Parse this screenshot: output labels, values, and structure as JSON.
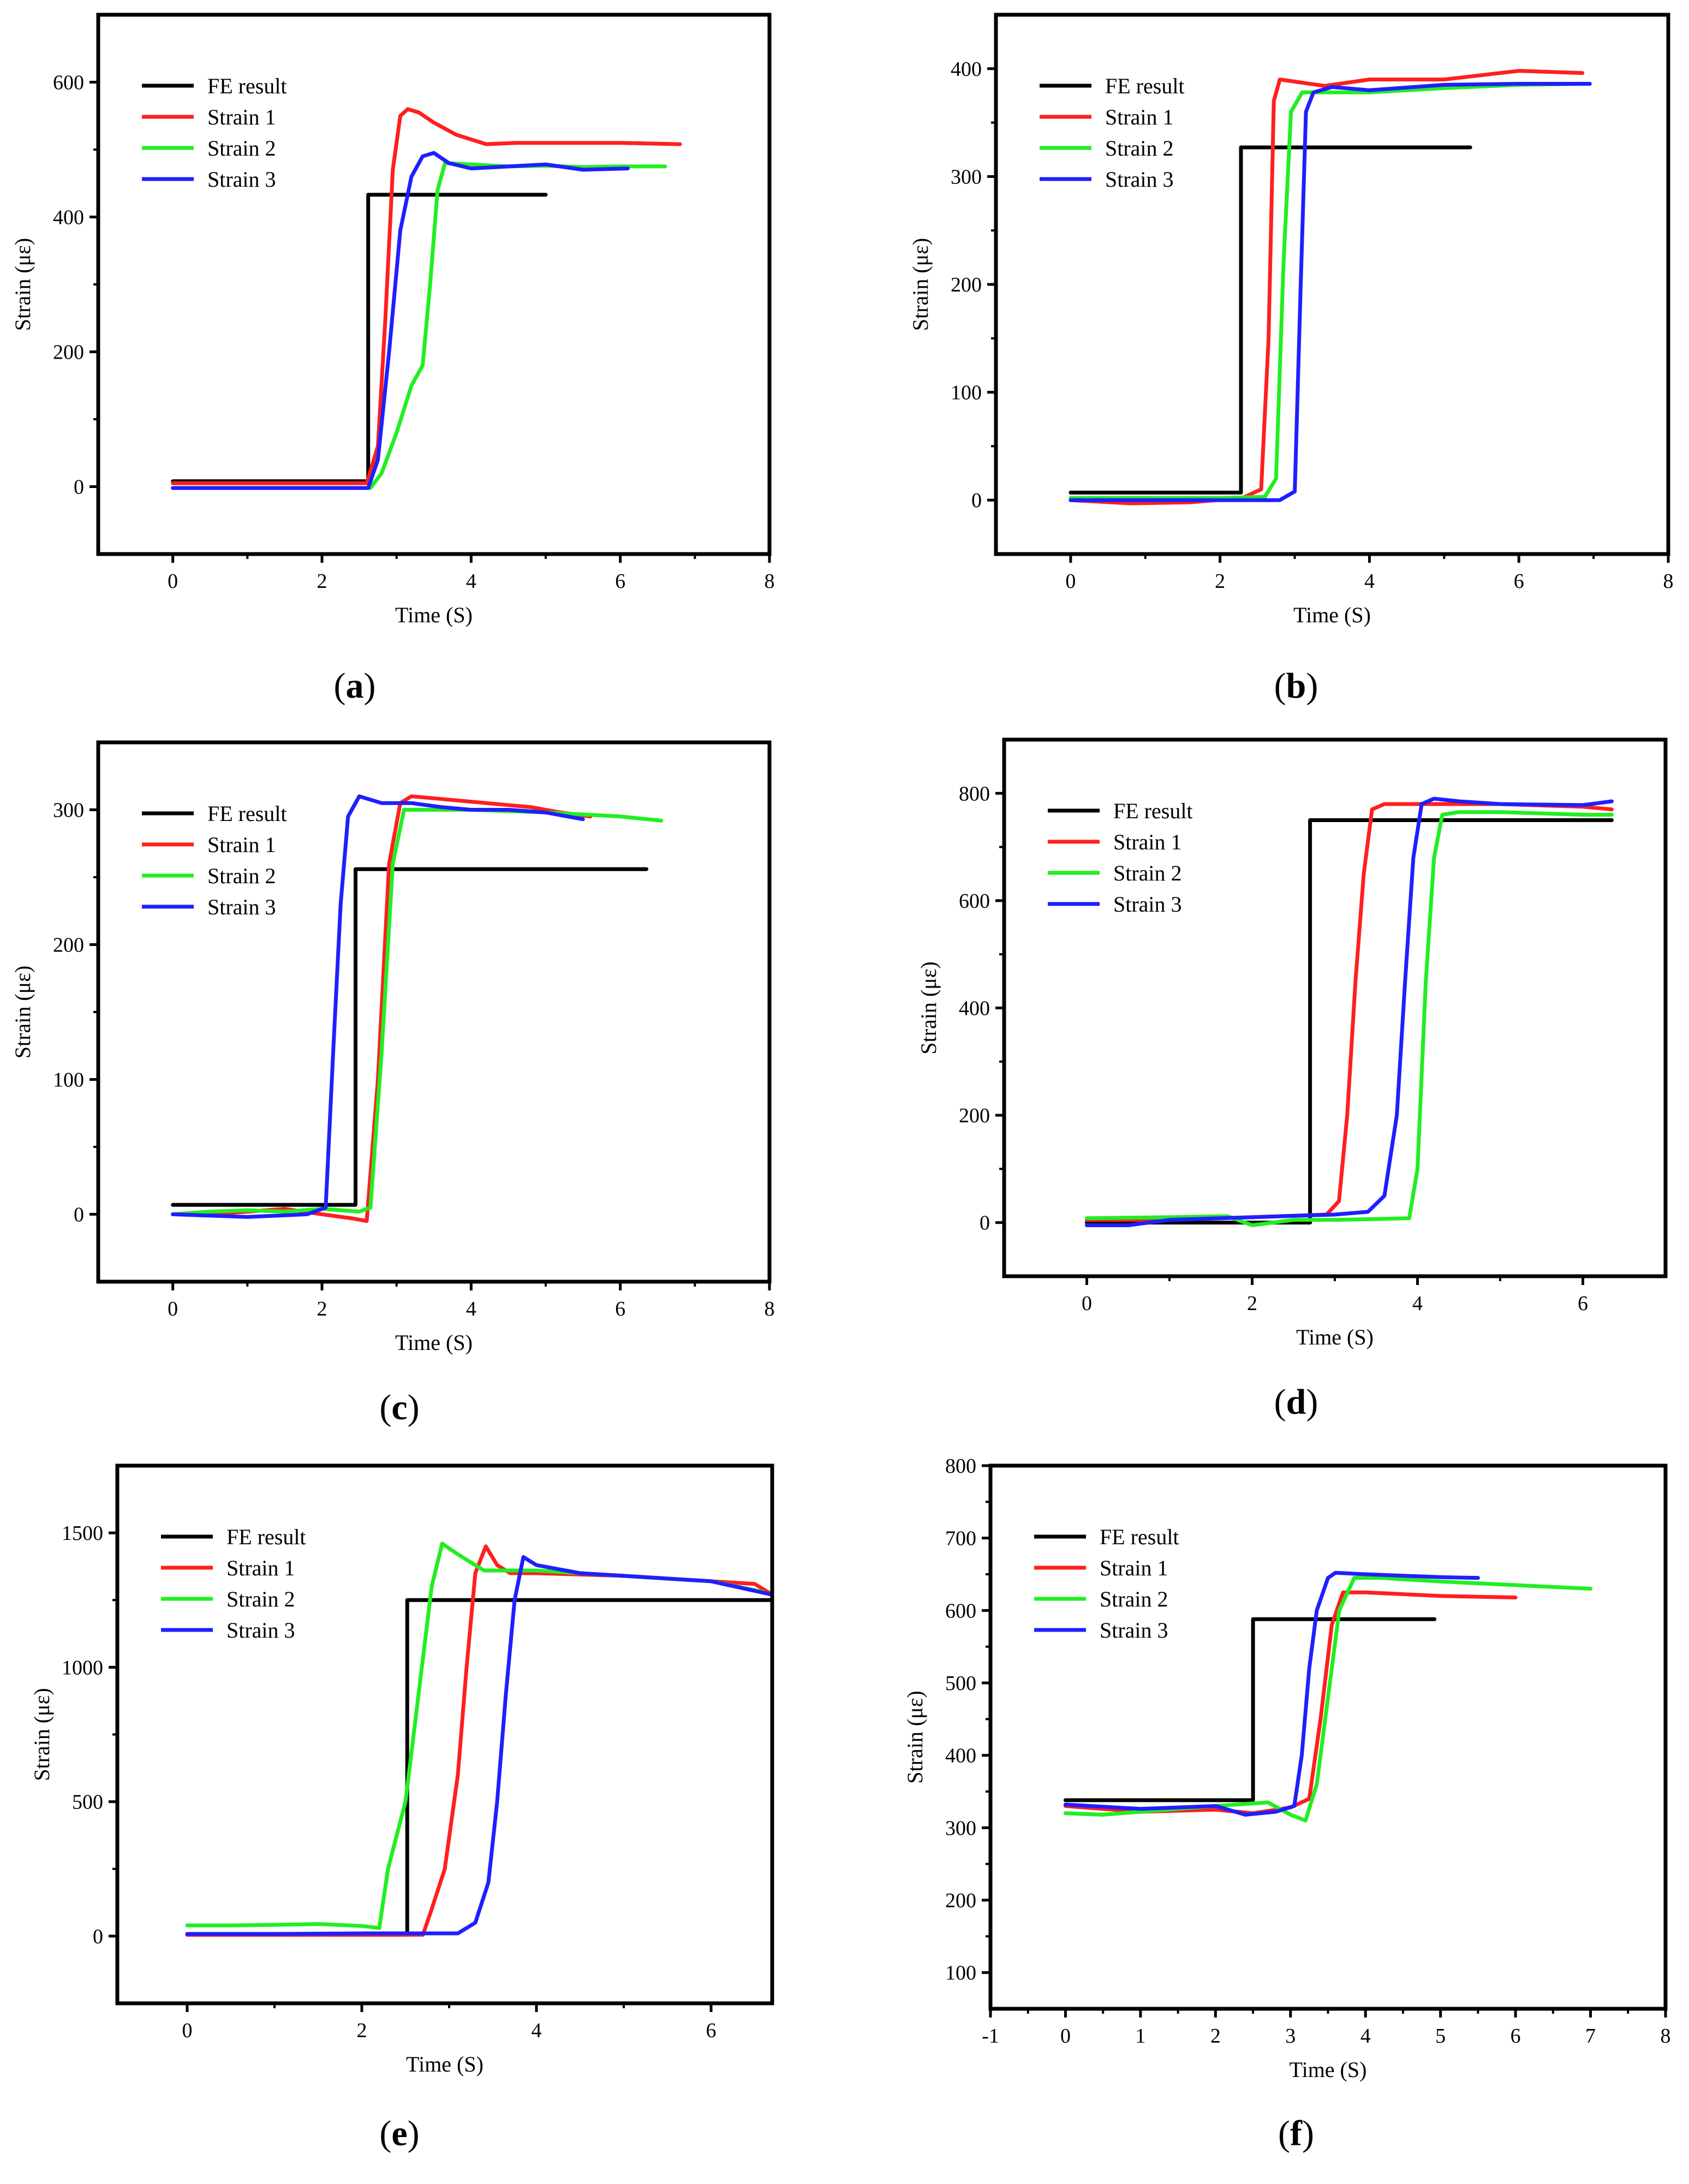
{
  "figure_colors": {
    "FE result": "#000000",
    "Strain 1": "#ff1f1f",
    "Strain 2": "#22ee22",
    "Strain 3": "#1f1fff"
  },
  "chart_data": [
    {
      "panel": "a",
      "type": "line",
      "xlabel": "Time (S)",
      "ylabel": "Strain (με)",
      "xlim": [
        -1,
        8
      ],
      "ylim": [
        -100,
        700
      ],
      "xticks": [
        0,
        2,
        4,
        6,
        8
      ],
      "yticks": [
        0,
        200,
        400,
        600
      ],
      "legend_position": "top-left",
      "series": [
        {
          "name": "FE result",
          "x": [
            0,
            2.62,
            2.62,
            5.0
          ],
          "y": [
            8,
            8,
            433,
            433
          ]
        },
        {
          "name": "Strain 1",
          "x": [
            0,
            1.0,
            2.0,
            2.6,
            2.75,
            2.85,
            2.95,
            3.05,
            3.15,
            3.3,
            3.5,
            3.8,
            4.2,
            4.6,
            5.2,
            6.0,
            6.8
          ],
          "y": [
            5,
            5,
            5,
            5,
            60,
            250,
            470,
            550,
            560,
            555,
            540,
            522,
            508,
            510,
            510,
            510,
            508
          ]
        },
        {
          "name": "Strain 2",
          "x": [
            0,
            1.0,
            2.0,
            2.65,
            2.8,
            3.0,
            3.2,
            3.35,
            3.45,
            3.55,
            3.65,
            4.0,
            4.5,
            5.0,
            5.5,
            6.0,
            6.6
          ],
          "y": [
            -2,
            -2,
            -2,
            -2,
            20,
            80,
            150,
            180,
            300,
            440,
            480,
            478,
            475,
            476,
            474,
            475,
            475
          ]
        },
        {
          "name": "Strain 3",
          "x": [
            0,
            1.0,
            2.0,
            2.62,
            2.75,
            2.9,
            3.05,
            3.2,
            3.35,
            3.5,
            3.7,
            4.0,
            4.5,
            5.0,
            5.5,
            6.1
          ],
          "y": [
            -2,
            -2,
            -2,
            -2,
            40,
            200,
            380,
            460,
            490,
            495,
            480,
            472,
            475,
            478,
            470,
            472
          ]
        }
      ]
    },
    {
      "panel": "b",
      "type": "line",
      "xlabel": "Time (S)",
      "ylabel": "Strain (με)",
      "xlim": [
        -1,
        8
      ],
      "ylim": [
        -50,
        450
      ],
      "xticks": [
        0,
        2,
        4,
        6,
        8
      ],
      "yticks": [
        0,
        100,
        200,
        300,
        400
      ],
      "legend_position": "top-left",
      "series": [
        {
          "name": "FE result",
          "x": [
            0,
            2.28,
            2.28,
            5.35
          ],
          "y": [
            7,
            7,
            327,
            327
          ]
        },
        {
          "name": "Strain 1",
          "x": [
            0,
            0.8,
            1.6,
            2.3,
            2.55,
            2.65,
            2.72,
            2.8,
            3.0,
            3.4,
            4.0,
            5.0,
            6.0,
            6.85
          ],
          "y": [
            0,
            -3,
            -2,
            2,
            10,
            150,
            370,
            390,
            388,
            384,
            390,
            390,
            398,
            396
          ]
        },
        {
          "name": "Strain 2",
          "x": [
            0,
            1.0,
            2.0,
            2.6,
            2.75,
            2.85,
            2.95,
            3.1,
            3.5,
            4.0,
            5.0,
            6.0,
            6.9
          ],
          "y": [
            2,
            2,
            2,
            3,
            20,
            220,
            360,
            378,
            378,
            378,
            382,
            385,
            386
          ]
        },
        {
          "name": "Strain 3",
          "x": [
            0,
            1.0,
            2.0,
            2.8,
            3.0,
            3.08,
            3.15,
            3.25,
            3.5,
            4.0,
            5.0,
            6.0,
            6.95
          ],
          "y": [
            0,
            0,
            0,
            0,
            8,
            200,
            360,
            378,
            383,
            380,
            385,
            386,
            386
          ]
        }
      ]
    },
    {
      "panel": "c",
      "type": "line",
      "xlabel": "Time (S)",
      "ylabel": "Strain (με)",
      "xlim": [
        -1,
        8
      ],
      "ylim": [
        -50,
        350
      ],
      "xticks": [
        0,
        2,
        4,
        6,
        8
      ],
      "yticks": [
        0,
        100,
        200,
        300
      ],
      "legend_position": "top-left",
      "series": [
        {
          "name": "FE result",
          "x": [
            0,
            2.45,
            2.45,
            6.35
          ],
          "y": [
            7,
            7,
            256,
            256
          ]
        },
        {
          "name": "Strain 1",
          "x": [
            0,
            0.5,
            1.0,
            1.5,
            2.0,
            2.4,
            2.6,
            2.75,
            2.9,
            3.05,
            3.2,
            3.6,
            4.2,
            4.8,
            5.2,
            5.6
          ],
          "y": [
            0,
            0,
            2,
            4,
            0,
            -3,
            -5,
            100,
            260,
            305,
            310,
            308,
            305,
            302,
            298,
            295
          ]
        },
        {
          "name": "Strain 2",
          "x": [
            0,
            0.5,
            1.0,
            1.5,
            2.0,
            2.5,
            2.65,
            2.8,
            2.95,
            3.1,
            3.4,
            4.0,
            5.0,
            6.0,
            6.55
          ],
          "y": [
            0,
            2,
            3,
            2,
            4,
            2,
            5,
            120,
            260,
            300,
            300,
            300,
            298,
            295,
            292
          ]
        },
        {
          "name": "Strain 3",
          "x": [
            0,
            1.0,
            1.8,
            2.05,
            2.15,
            2.25,
            2.35,
            2.5,
            2.8,
            3.2,
            3.6,
            4.0,
            4.5,
            5.0,
            5.5
          ],
          "y": [
            0,
            -2,
            0,
            5,
            120,
            230,
            295,
            310,
            305,
            305,
            302,
            300,
            300,
            298,
            293
          ]
        }
      ]
    },
    {
      "panel": "d",
      "type": "line",
      "xlabel": "Time (S)",
      "ylabel": "Strain (με)",
      "xlim": [
        -1,
        7
      ],
      "ylim": [
        -100,
        900
      ],
      "xticks": [
        0,
        2,
        4,
        6
      ],
      "yticks": [
        0,
        200,
        400,
        600,
        800
      ],
      "legend_position": "top-left",
      "series": [
        {
          "name": "FE result",
          "x": [
            0,
            2.7,
            2.7,
            6.35
          ],
          "y": [
            0,
            0,
            750,
            750
          ]
        },
        {
          "name": "Strain 1",
          "x": [
            0,
            1.0,
            2.0,
            2.9,
            3.05,
            3.15,
            3.25,
            3.35,
            3.45,
            3.6,
            4.0,
            5.0,
            6.0,
            6.35
          ],
          "y": [
            5,
            5,
            10,
            15,
            40,
            200,
            450,
            650,
            770,
            780,
            780,
            780,
            775,
            770
          ]
        },
        {
          "name": "Strain 2",
          "x": [
            0,
            1.0,
            1.7,
            2.0,
            2.5,
            3.0,
            3.9,
            4.0,
            4.1,
            4.2,
            4.3,
            4.5,
            5.0,
            6.0,
            6.35
          ],
          "y": [
            8,
            10,
            12,
            -5,
            5,
            5,
            8,
            100,
            450,
            680,
            760,
            765,
            765,
            760,
            760
          ]
        },
        {
          "name": "Strain 3",
          "x": [
            0,
            0.5,
            1.0,
            2.0,
            3.0,
            3.4,
            3.6,
            3.75,
            3.85,
            3.95,
            4.05,
            4.2,
            4.5,
            5.0,
            6.0,
            6.35
          ],
          "y": [
            -5,
            -5,
            5,
            10,
            15,
            20,
            50,
            200,
            450,
            680,
            780,
            790,
            785,
            780,
            778,
            785
          ]
        }
      ]
    },
    {
      "panel": "e",
      "type": "line",
      "xlabel": "Time (S)",
      "ylabel": "Strain (με)",
      "xlim": [
        -0.8,
        6.7
      ],
      "ylim": [
        -250,
        1750
      ],
      "xticks": [
        0,
        2,
        4,
        6
      ],
      "yticks": [
        0,
        500,
        1000,
        1500
      ],
      "legend_position": "top-left",
      "series": [
        {
          "name": "FE result",
          "x": [
            0,
            2.52,
            2.52,
            6.7
          ],
          "y": [
            5,
            5,
            1250,
            1250
          ]
        },
        {
          "name": "Strain 1",
          "x": [
            0,
            1.0,
            2.0,
            2.7,
            2.8,
            2.95,
            3.1,
            3.2,
            3.3,
            3.42,
            3.55,
            3.7,
            4.0,
            5.0,
            6.0,
            6.5,
            6.7
          ],
          "y": [
            5,
            5,
            5,
            5,
            100,
            250,
            600,
            1000,
            1350,
            1450,
            1380,
            1350,
            1350,
            1340,
            1320,
            1310,
            1270
          ]
        },
        {
          "name": "Strain 2",
          "x": [
            0,
            0.5,
            1.0,
            1.5,
            2.0,
            2.2,
            2.3,
            2.5,
            2.65,
            2.8,
            2.92,
            3.1,
            3.4,
            4.0,
            5.0,
            6.0,
            6.6
          ],
          "y": [
            40,
            40,
            42,
            45,
            38,
            30,
            250,
            500,
            900,
            1300,
            1460,
            1420,
            1360,
            1360,
            1340,
            1320,
            1280
          ]
        },
        {
          "name": "Strain 3",
          "x": [
            0,
            1.0,
            2.0,
            3.1,
            3.3,
            3.45,
            3.55,
            3.65,
            3.75,
            3.85,
            4.0,
            4.5,
            5.0,
            6.0,
            6.7
          ],
          "y": [
            8,
            8,
            10,
            10,
            50,
            200,
            500,
            900,
            1250,
            1410,
            1380,
            1350,
            1340,
            1320,
            1270
          ]
        }
      ]
    },
    {
      "panel": "f",
      "type": "line",
      "xlabel": "Time (S)",
      "ylabel": "Strain (με)",
      "xlim": [
        -1,
        8
      ],
      "ylim": [
        50,
        800
      ],
      "xticks": [
        -1,
        0,
        1,
        2,
        3,
        4,
        5,
        6,
        7,
        8
      ],
      "yticks": [
        100,
        200,
        300,
        400,
        500,
        600,
        700,
        800
      ],
      "legend_position": "top-left",
      "series": [
        {
          "name": "FE result",
          "x": [
            0,
            2.5,
            2.5,
            4.92
          ],
          "y": [
            338,
            338,
            588,
            588
          ]
        },
        {
          "name": "Strain 1",
          "x": [
            0,
            1.0,
            2.0,
            2.5,
            3.0,
            3.25,
            3.4,
            3.55,
            3.7,
            4.0,
            5.0,
            6.0
          ],
          "y": [
            330,
            322,
            325,
            320,
            328,
            340,
            450,
            580,
            625,
            625,
            620,
            618
          ]
        },
        {
          "name": "Strain 2",
          "x": [
            0,
            0.5,
            1.0,
            2.0,
            2.7,
            3.0,
            3.2,
            3.35,
            3.5,
            3.65,
            3.85,
            4.2,
            5.0,
            6.0,
            7.0
          ],
          "y": [
            320,
            318,
            322,
            330,
            335,
            318,
            310,
            360,
            480,
            600,
            645,
            645,
            640,
            635,
            630
          ]
        },
        {
          "name": "Strain 3",
          "x": [
            0,
            1.0,
            2.0,
            2.4,
            2.8,
            3.05,
            3.15,
            3.25,
            3.35,
            3.5,
            3.6,
            4.0,
            5.0,
            5.5
          ],
          "y": [
            332,
            326,
            330,
            318,
            322,
            330,
            400,
            520,
            600,
            645,
            652,
            650,
            646,
            645
          ]
        }
      ]
    }
  ]
}
